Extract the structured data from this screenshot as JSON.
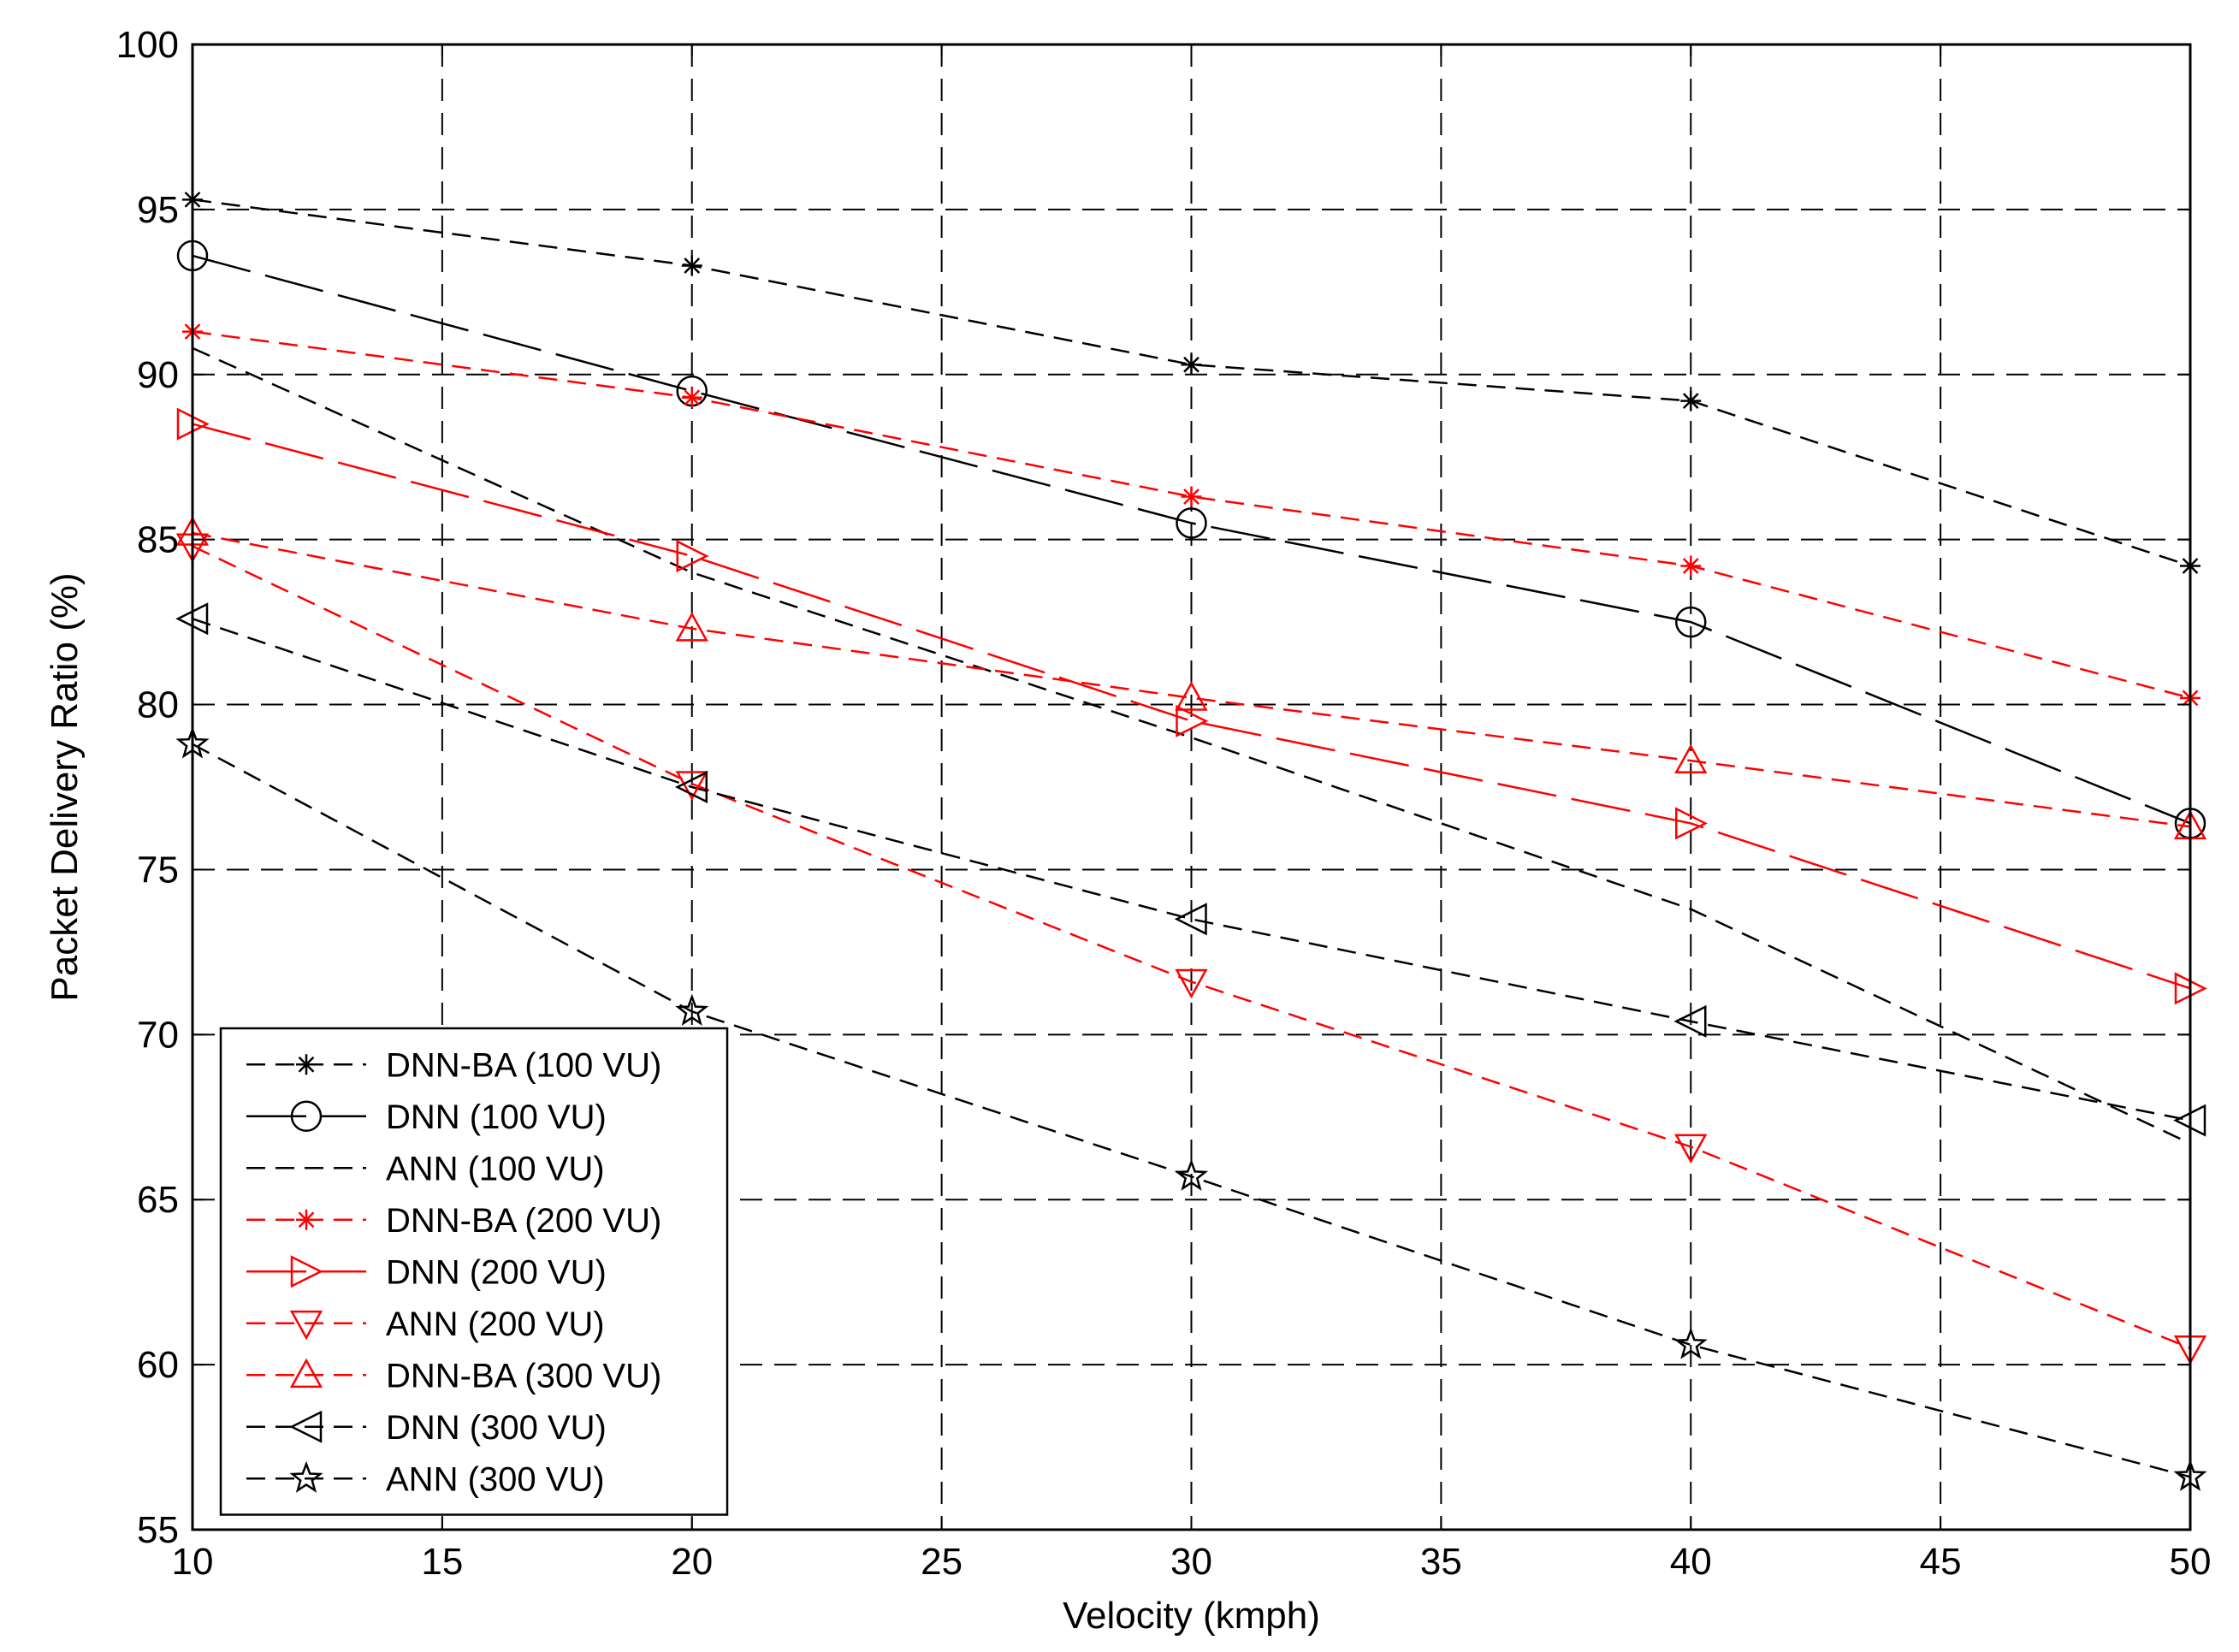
{
  "chart_data": {
    "type": "line",
    "title": "",
    "xlabel": "Velocity (kmph)",
    "ylabel": "Packet Delivery Ratio (%)",
    "xlim": [
      10,
      50
    ],
    "ylim": [
      55,
      100
    ],
    "x_ticks": [
      10,
      15,
      20,
      25,
      30,
      35,
      40,
      45,
      50
    ],
    "y_ticks": [
      55,
      60,
      65,
      70,
      75,
      80,
      85,
      90,
      95,
      100
    ],
    "grid": true,
    "legend_position": "bottom-left",
    "x": [
      10,
      20,
      30,
      40,
      50
    ],
    "series": [
      {
        "name": "DNN-BA (100 VU)",
        "color": "#000000",
        "marker": "asterisk",
        "dash": "dashed",
        "values": [
          95.3,
          93.3,
          90.3,
          89.2,
          84.2
        ]
      },
      {
        "name": "DNN (100 VU)",
        "color": "#000000",
        "marker": "circle",
        "dash": "longdash",
        "values": [
          93.6,
          89.5,
          85.5,
          82.5,
          76.4
        ]
      },
      {
        "name": "ANN (100 VU)",
        "color": "#000000",
        "marker": "none",
        "dash": "dashed",
        "values": [
          90.8,
          84.0,
          79.0,
          73.8,
          66.7
        ]
      },
      {
        "name": "DNN-BA (200 VU)",
        "color": "#ff0000",
        "marker": "asterisk",
        "dash": "dashed",
        "values": [
          91.3,
          89.3,
          86.3,
          84.2,
          80.2
        ]
      },
      {
        "name": "DNN (200 VU)",
        "color": "#ff0000",
        "marker": "triangle-right",
        "dash": "longdash",
        "values": [
          88.5,
          84.5,
          79.5,
          76.4,
          71.4
        ]
      },
      {
        "name": "ANN (200 VU)",
        "color": "#ff0000",
        "marker": "triangle-down",
        "dash": "dashed",
        "values": [
          84.8,
          77.6,
          71.6,
          66.6,
          60.5
        ]
      },
      {
        "name": "DNN-BA (300 VU)",
        "color": "#ff0000",
        "marker": "triangle-up",
        "dash": "dashed",
        "values": [
          85.2,
          82.3,
          80.2,
          78.3,
          76.3
        ]
      },
      {
        "name": "DNN (300 VU)",
        "color": "#000000",
        "marker": "triangle-left",
        "dash": "dashed",
        "values": [
          82.6,
          77.5,
          73.5,
          70.4,
          67.4
        ]
      },
      {
        "name": "ANN (300 VU)",
        "color": "#000000",
        "marker": "star",
        "dash": "dashed",
        "values": [
          78.8,
          70.7,
          65.7,
          60.6,
          56.6
        ]
      }
    ]
  }
}
